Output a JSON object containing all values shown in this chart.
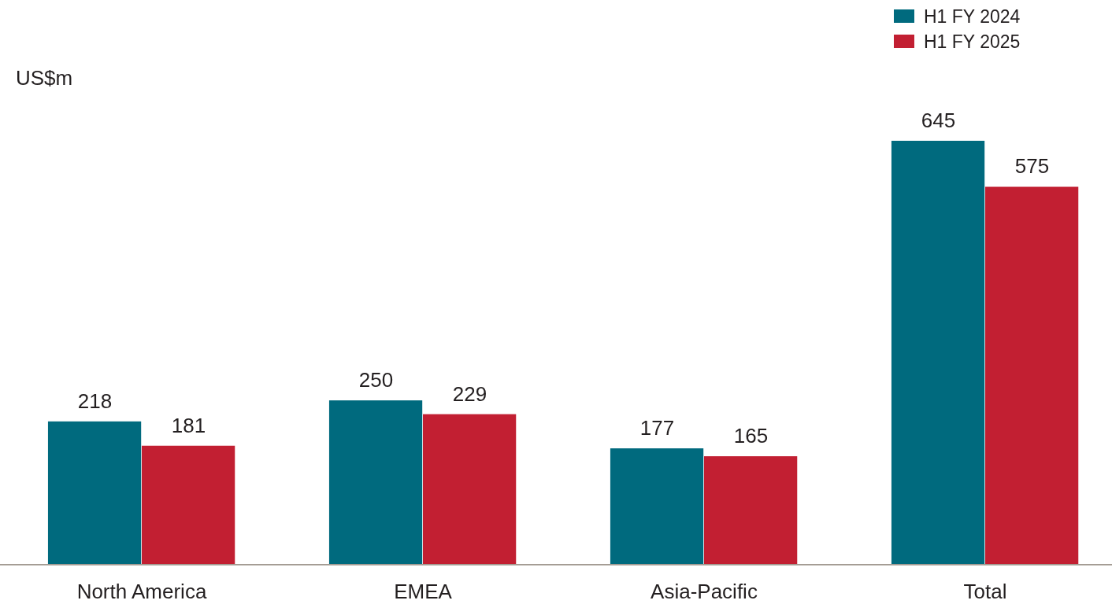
{
  "chart_data": {
    "type": "bar",
    "ylabel": "US$m",
    "categories": [
      "North America",
      "EMEA",
      "Asia-Pacific",
      "Total"
    ],
    "series": [
      {
        "name": "H1 FY 2024",
        "color": "#006a7e",
        "values": [
          218,
          250,
          177,
          645
        ]
      },
      {
        "name": "H1 FY 2025",
        "color": "#c21f32",
        "values": [
          181,
          229,
          165,
          575
        ]
      }
    ],
    "data_labels": true,
    "legend": "top right"
  }
}
